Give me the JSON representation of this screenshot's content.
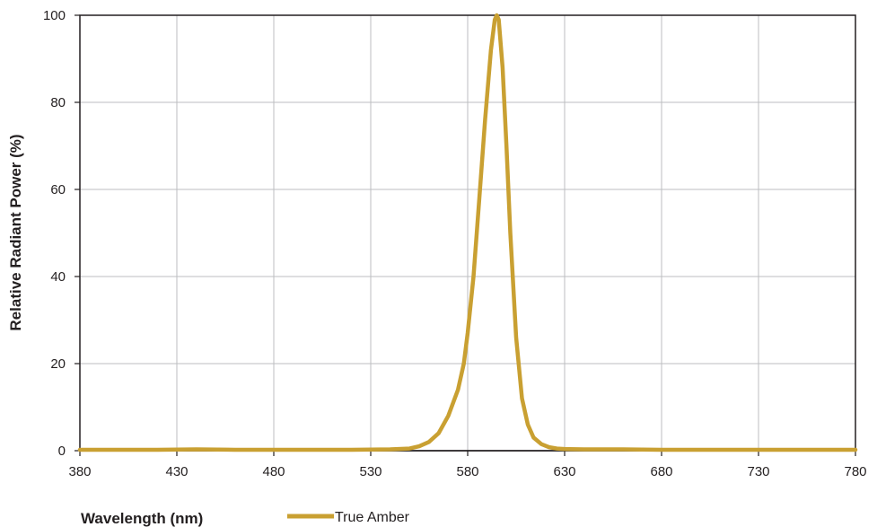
{
  "chart_data": {
    "type": "line",
    "xlabel": "Wavelength (nm)",
    "ylabel": "Relative Radiant Power (%)",
    "xlim": [
      380,
      780
    ],
    "ylim": [
      0,
      100
    ],
    "x_ticks": [
      380,
      430,
      480,
      530,
      580,
      630,
      680,
      730,
      780
    ],
    "y_ticks": [
      0,
      20,
      40,
      60,
      80,
      100
    ],
    "grid": true,
    "legend_position": "bottom",
    "series": [
      {
        "name": "True Amber",
        "color": "#c9a032",
        "x": [
          380,
          400,
          420,
          440,
          460,
          480,
          500,
          520,
          540,
          550,
          555,
          560,
          565,
          570,
          575,
          578,
          580,
          583,
          586,
          589,
          592,
          594,
          595,
          596,
          598,
          600,
          602,
          605,
          608,
          611,
          614,
          618,
          622,
          626,
          630,
          640,
          660,
          680,
          700,
          720,
          740,
          760,
          780
        ],
        "y": [
          0.2,
          0.2,
          0.2,
          0.3,
          0.2,
          0.2,
          0.2,
          0.2,
          0.3,
          0.5,
          1,
          2,
          4,
          8,
          14,
          20,
          27,
          40,
          58,
          76,
          92,
          99,
          100,
          99,
          88,
          70,
          50,
          26,
          12,
          6,
          3,
          1.5,
          0.8,
          0.5,
          0.4,
          0.3,
          0.3,
          0.2,
          0.2,
          0.2,
          0.2,
          0.2,
          0.2
        ]
      }
    ]
  }
}
